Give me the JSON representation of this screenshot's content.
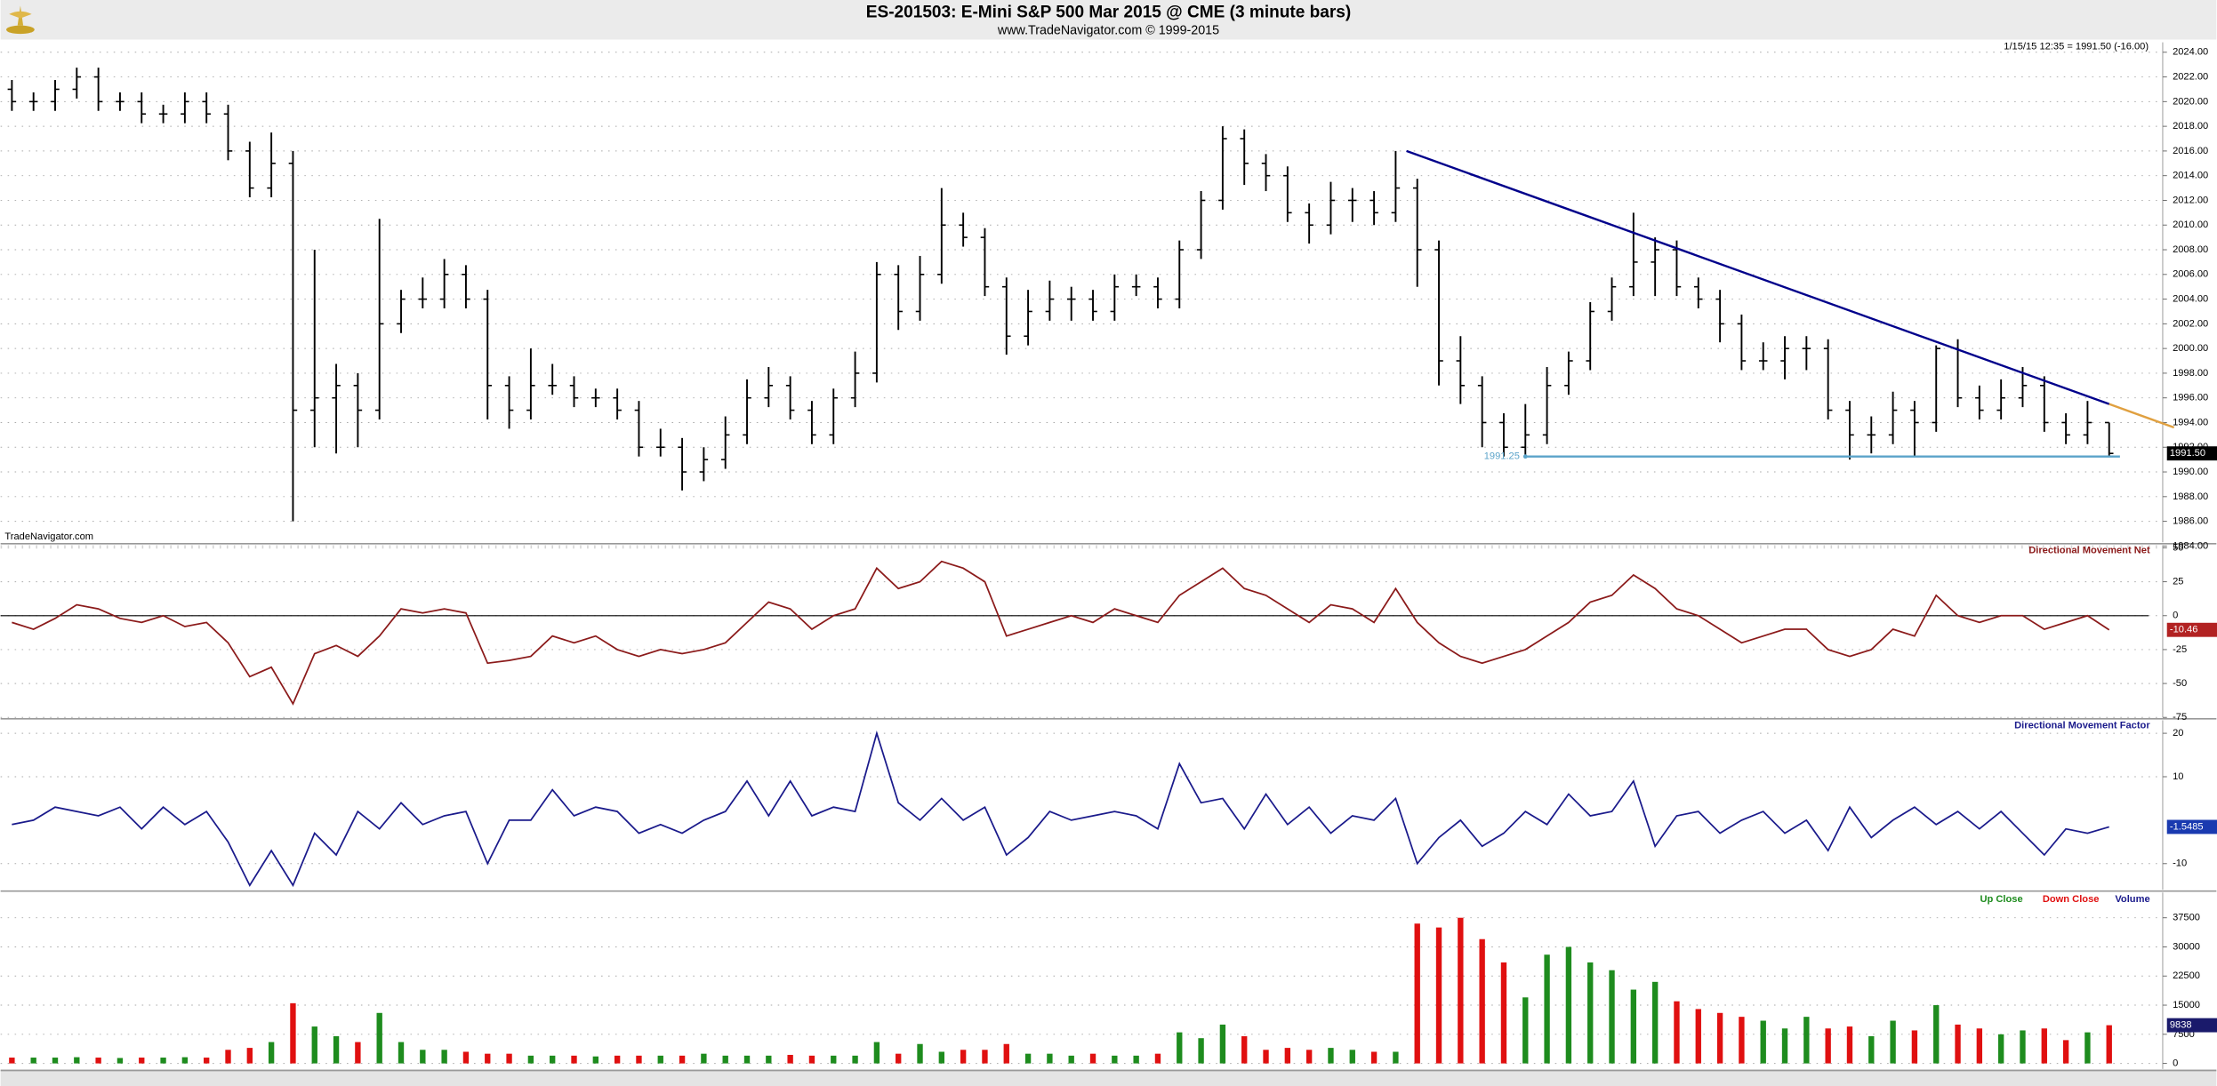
{
  "chart_data": [
    {
      "type": "ohlc",
      "title": "ES-201503:  E-Mini S&P 500 Mar 2015 @ CME  (3 minute bars)",
      "subtitle": "www.TradeNavigator.com © 1999-2015",
      "info": "1/15/15 12:35 = 1991.50 (-16.00)",
      "watermark": "TradeNavigator.com",
      "last_label": "1991.50",
      "last_label_color": "#000000",
      "color": "#000000",
      "grid": true,
      "ylim": [
        1984.3,
        2024.8
      ],
      "yticks": [
        {
          "value": 2024,
          "label": "2024.00"
        },
        {
          "value": 2022,
          "label": "2022.00"
        },
        {
          "value": 2020,
          "label": "2020.00"
        },
        {
          "value": 2018,
          "label": "2018.00"
        },
        {
          "value": 2016,
          "label": "2016.00"
        },
        {
          "value": 2014,
          "label": "2014.00"
        },
        {
          "value": 2012,
          "label": "2012.00"
        },
        {
          "value": 2010,
          "label": "2010.00"
        },
        {
          "value": 2008,
          "label": "2008.00"
        },
        {
          "value": 2006,
          "label": "2006.00"
        },
        {
          "value": 2004,
          "label": "2004.00"
        },
        {
          "value": 2002,
          "label": "2002.00"
        },
        {
          "value": 2000,
          "label": "2000.00"
        },
        {
          "value": 1998,
          "label": "1998.00"
        },
        {
          "value": 1996,
          "label": "1996.00"
        },
        {
          "value": 1994,
          "label": "1994.00"
        },
        {
          "value": 1992,
          "label": "1992.00"
        },
        {
          "value": 1990,
          "label": "1990.00"
        },
        {
          "value": 1988,
          "label": "1988.00"
        },
        {
          "value": 1986,
          "label": "1986.00"
        },
        {
          "value": 1984,
          "label": "1984.00"
        }
      ],
      "bars": [
        [
          2021,
          2021.75,
          2019.25,
          2020
        ],
        [
          2020,
          2020.75,
          2019.25,
          2020
        ],
        [
          2020,
          2021.75,
          2019.25,
          2021
        ],
        [
          2021,
          2022.75,
          2020.25,
          2022
        ],
        [
          2022,
          2022.75,
          2019.25,
          2020
        ],
        [
          2020,
          2020.75,
          2019.25,
          2020
        ],
        [
          2020,
          2020.75,
          2018.25,
          2019
        ],
        [
          2019,
          2019.75,
          2018.25,
          2019
        ],
        [
          2019,
          2020.75,
          2018.25,
          2020
        ],
        [
          2020,
          2020.75,
          2018.25,
          2019
        ],
        [
          2019,
          2019.75,
          2015.25,
          2016
        ],
        [
          2016,
          2016.75,
          2012.25,
          2013
        ],
        [
          2013,
          2017.5,
          2012.25,
          2015
        ],
        [
          2015,
          2016,
          1986,
          1995
        ],
        [
          1995,
          2008,
          1992,
          1996
        ],
        [
          1996,
          1998.75,
          1991.5,
          1997
        ],
        [
          1997,
          1998,
          1992,
          1995
        ],
        [
          1995,
          2010.5,
          1994.25,
          2002
        ],
        [
          2002,
          2004.75,
          2001.25,
          2004
        ],
        [
          2004,
          2005.75,
          2003.25,
          2004
        ],
        [
          2004,
          2007.25,
          2003.25,
          2006
        ],
        [
          2006,
          2006.75,
          2003.25,
          2004
        ],
        [
          2004,
          2004.75,
          1994.25,
          1997
        ],
        [
          1997,
          1997.75,
          1993.5,
          1995
        ],
        [
          1995,
          2000,
          1994.25,
          1997
        ],
        [
          1997,
          1998.75,
          1996.25,
          1997
        ],
        [
          1997,
          1997.75,
          1995.25,
          1996
        ],
        [
          1996,
          1996.75,
          1995.25,
          1996
        ],
        [
          1996,
          1996.75,
          1994.25,
          1995
        ],
        [
          1995,
          1995.75,
          1991.25,
          1992
        ],
        [
          1992,
          1993.5,
          1991.25,
          1992
        ],
        [
          1992,
          1992.75,
          1988.5,
          1990
        ],
        [
          1990,
          1992,
          1989.25,
          1991
        ],
        [
          1991,
          1994.5,
          1990.25,
          1993
        ],
        [
          1993,
          1997.5,
          1992.25,
          1996
        ],
        [
          1996,
          1998.5,
          1995.25,
          1997
        ],
        [
          1997,
          1997.75,
          1994.25,
          1995
        ],
        [
          1995,
          1995.75,
          1992.25,
          1993
        ],
        [
          1993,
          1996.75,
          1992.25,
          1996
        ],
        [
          1996,
          1999.75,
          1995.25,
          1998
        ],
        [
          1998,
          2007,
          1997.25,
          2006
        ],
        [
          2006,
          2006.75,
          2001.5,
          2003
        ],
        [
          2003,
          2007.5,
          2002.25,
          2006
        ],
        [
          2006,
          2013,
          2005.25,
          2010
        ],
        [
          2010,
          2011,
          2008.25,
          2009
        ],
        [
          2009,
          2009.75,
          2004.25,
          2005
        ],
        [
          2005,
          2005.75,
          1999.5,
          2001
        ],
        [
          2001,
          2004.75,
          2000.25,
          2003
        ],
        [
          2003,
          2005.5,
          2002.25,
          2004
        ],
        [
          2004,
          2005,
          2002.25,
          2004
        ],
        [
          2004,
          2004.75,
          2002.25,
          2003
        ],
        [
          2003,
          2006,
          2002.25,
          2005
        ],
        [
          2005,
          2006,
          2004.25,
          2005
        ],
        [
          2005,
          2005.75,
          2003.25,
          2004
        ],
        [
          2004,
          2008.75,
          2003.25,
          2008
        ],
        [
          2008,
          2012.75,
          2007.25,
          2012
        ],
        [
          2012,
          2018,
          2011.25,
          2017
        ],
        [
          2017,
          2017.75,
          2013.25,
          2015
        ],
        [
          2015,
          2015.75,
          2012.75,
          2014
        ],
        [
          2014,
          2014.75,
          2010.25,
          2011
        ],
        [
          2011,
          2011.75,
          2008.5,
          2010
        ],
        [
          2010,
          2013.5,
          2009.25,
          2012
        ],
        [
          2012,
          2013,
          2010.25,
          2012
        ],
        [
          2012,
          2012.75,
          2010,
          2011
        ],
        [
          2011,
          2016,
          2010.25,
          2013
        ],
        [
          2013,
          2013.75,
          2005,
          2008
        ],
        [
          2008,
          2008.75,
          1997,
          1999
        ],
        [
          1999,
          2001,
          1995.5,
          1997
        ],
        [
          1997,
          1997.75,
          1992,
          1994
        ],
        [
          1994,
          1994.75,
          1991.25,
          1992
        ],
        [
          1992,
          1995.5,
          1991.25,
          1993
        ],
        [
          1993,
          1998.5,
          1992.25,
          1997
        ],
        [
          1997,
          1999.75,
          1996.25,
          1999
        ],
        [
          1999,
          2003.75,
          1998.25,
          2003
        ],
        [
          2003,
          2005.75,
          2002.25,
          2005
        ],
        [
          2005,
          2011,
          2004.25,
          2007
        ],
        [
          2007,
          2009,
          2004.25,
          2008
        ],
        [
          2008,
          2008.75,
          2004.25,
          2005
        ],
        [
          2005,
          2005.75,
          2003.25,
          2004
        ],
        [
          2004,
          2004.75,
          2000.5,
          2002
        ],
        [
          2002,
          2002.75,
          1998.25,
          1999
        ],
        [
          1999,
          2000.5,
          1998.25,
          1999
        ],
        [
          1999,
          2001,
          1997.5,
          2000
        ],
        [
          2000,
          2001,
          1998.25,
          2000
        ],
        [
          2000,
          2000.75,
          1994.25,
          1995
        ],
        [
          1995,
          1995.75,
          1991,
          1993
        ],
        [
          1993,
          1994.5,
          1991.5,
          1993
        ],
        [
          1993,
          1996.5,
          1992.25,
          1995
        ],
        [
          1995,
          1995.75,
          1991.25,
          1994
        ],
        [
          1994,
          2000.25,
          1993.25,
          2000
        ],
        [
          2000,
          2000.75,
          1995.25,
          1996
        ],
        [
          1996,
          1997,
          1994.25,
          1995
        ],
        [
          1995,
          1997.5,
          1994.25,
          1996
        ],
        [
          1996,
          1998.5,
          1995.25,
          1997
        ],
        [
          1997,
          1997.75,
          1993.25,
          1994
        ],
        [
          1994,
          1994.75,
          1992.25,
          1993
        ],
        [
          1993,
          1995.75,
          1992.25,
          1994
        ],
        [
          1994,
          1994,
          1991.25,
          1991.5
        ]
      ],
      "lines": [
        {
          "x": [
            64.5,
            97
          ],
          "values": [
            2016,
            1995.5
          ],
          "color": "#00008b"
        },
        {
          "x": [
            97,
            100
          ],
          "values": [
            1995.5,
            1993.6
          ],
          "color": "#e0a040"
        },
        {
          "x": [
            70,
            97.5
          ],
          "values": [
            1991.25,
            1991.25
          ],
          "color": "#5ba3c9",
          "label": "1991.25"
        }
      ]
    },
    {
      "type": "line",
      "title": "Directional Movement Net",
      "color": "#8b1a1a",
      "last_label": "-10.46",
      "last_label_color": "#b22222",
      "grid": true,
      "hline": 0,
      "ylim": [
        -75,
        52
      ],
      "yticks": [
        50,
        25,
        0,
        -25,
        -50,
        -75
      ],
      "values": [
        -5,
        -10,
        -2,
        8,
        5,
        -2,
        -5,
        0,
        -8,
        -5,
        -20,
        -45,
        -38,
        -65,
        -28,
        -22,
        -30,
        -15,
        5,
        2,
        5,
        2,
        -35,
        -33,
        -30,
        -15,
        -20,
        -15,
        -25,
        -30,
        -25,
        -28,
        -25,
        -20,
        -5,
        10,
        5,
        -10,
        0,
        5,
        35,
        20,
        25,
        40,
        35,
        25,
        -15,
        -10,
        -5,
        0,
        -5,
        5,
        0,
        -5,
        15,
        25,
        35,
        20,
        15,
        5,
        -5,
        8,
        5,
        -5,
        20,
        -5,
        -20,
        -30,
        -35,
        -30,
        -25,
        -15,
        -5,
        10,
        15,
        30,
        20,
        5,
        0,
        -10,
        -20,
        -15,
        -10,
        -10,
        -25,
        -30,
        -25,
        -10,
        -15,
        15,
        0,
        -5,
        0,
        0,
        -10,
        -5,
        0,
        -10.46
      ]
    },
    {
      "type": "line",
      "title": "Directional Movement Factor",
      "color": "#1a1a8b",
      "last_label": "-1.5485",
      "last_label_color": "#1a3ab0",
      "grid": true,
      "ylim": [
        -16,
        23
      ],
      "yticks": [
        20,
        10,
        -10
      ],
      "values": [
        -1,
        0,
        3,
        2,
        1,
        3,
        -2,
        3,
        -1,
        2,
        -5,
        -15,
        -7,
        -15,
        -3,
        -8,
        2,
        -2,
        4,
        -1,
        1,
        2,
        -10,
        0,
        0,
        7,
        1,
        3,
        2,
        -3,
        -1,
        -3,
        0,
        2,
        9,
        1,
        9,
        1,
        3,
        2,
        20,
        4,
        0,
        5,
        0,
        3,
        -8,
        -4,
        2,
        0,
        1,
        2,
        1,
        -2,
        13,
        4,
        5,
        -2,
        6,
        -1,
        3,
        -3,
        1,
        0,
        5,
        -10,
        -4,
        0,
        -6,
        -3,
        2,
        -1,
        6,
        1,
        2,
        9,
        -6,
        1,
        2,
        -3,
        0,
        2,
        -3,
        0,
        -7,
        3,
        -4,
        0,
        3,
        -1,
        2,
        -2,
        2,
        -3,
        -8,
        -2,
        -3,
        -1.5485
      ]
    },
    {
      "type": "bar",
      "title": "Volume",
      "title_color": "#1a1a8b",
      "last_label": "9838",
      "last_label_color": "#1a1a6b",
      "grid": true,
      "ylim": [
        -1450,
        44000
      ],
      "yticks": [
        37500,
        30000,
        22500,
        15000,
        7500,
        0
      ],
      "series": [
        {
          "name": "Up Close",
          "color": "#1e8c1e",
          "values": [
            null,
            1500,
            1500,
            1600,
            null,
            1400,
            null,
            1500,
            1600,
            null,
            null,
            null,
            5500,
            null,
            9500,
            7000,
            null,
            13000,
            5500,
            3500,
            3500,
            null,
            null,
            null,
            2000,
            2000,
            null,
            1800,
            null,
            null,
            2000,
            null,
            2500,
            2000,
            2000,
            2000,
            null,
            null,
            2000,
            2000,
            5500,
            null,
            5000,
            3000,
            null,
            null,
            null,
            2500,
            2500,
            2000,
            null,
            2000,
            2000,
            null,
            8000,
            6500,
            10000,
            null,
            null,
            null,
            null,
            4000,
            3500,
            null,
            3000,
            null,
            null,
            null,
            null,
            null,
            17000,
            28000,
            30000,
            26000,
            24000,
            19000,
            21000,
            null,
            null,
            null,
            null,
            11000,
            9000,
            12000,
            null,
            null,
            7000,
            11000,
            null,
            15000,
            null,
            null,
            7500,
            8500,
            null,
            null,
            8000,
            null
          ]
        },
        {
          "name": "Down Close",
          "color": "#e01010",
          "values": [
            1500,
            null,
            null,
            null,
            1500,
            null,
            1500,
            null,
            null,
            1500,
            3500,
            4000,
            null,
            15500,
            null,
            null,
            5500,
            null,
            null,
            null,
            null,
            3000,
            2500,
            2500,
            null,
            null,
            2000,
            null,
            2000,
            2000,
            null,
            2000,
            null,
            null,
            null,
            null,
            2200,
            2000,
            null,
            null,
            null,
            2500,
            null,
            null,
            3500,
            3500,
            5000,
            null,
            null,
            null,
            2500,
            null,
            null,
            2500,
            null,
            null,
            null,
            7000,
            3500,
            4000,
            3500,
            null,
            null,
            3000,
            null,
            36000,
            35000,
            37500,
            32000,
            26000,
            null,
            null,
            null,
            null,
            null,
            null,
            null,
            16000,
            14000,
            13000,
            12000,
            null,
            null,
            null,
            9000,
            9500,
            null,
            null,
            8500,
            null,
            10000,
            9000,
            null,
            null,
            9000,
            6000,
            null,
            9838
          ]
        }
      ]
    }
  ]
}
